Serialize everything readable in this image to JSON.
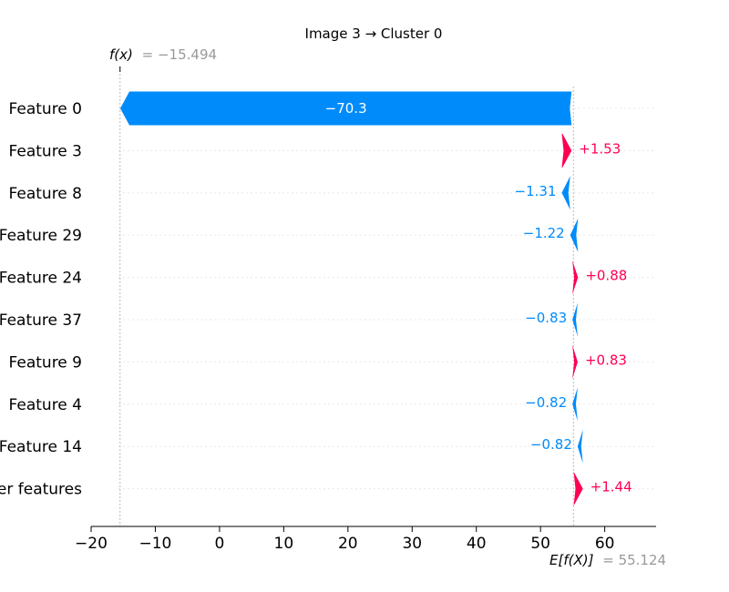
{
  "chart_data": {
    "type": "waterfall",
    "title": "Image 3 → Cluster 0",
    "fx_label": "f(x)",
    "fx_value_text": "= −15.494",
    "fx_value": -15.494,
    "ex_label": "E[f(X)]",
    "ex_value_text": "= 55.124",
    "ex_value": 55.124,
    "xlim": [
      -20,
      68
    ],
    "xticks": [
      -20,
      -10,
      0,
      10,
      20,
      30,
      40,
      50,
      60
    ],
    "xtick_labels": [
      "−20",
      "−10",
      "0",
      "10",
      "20",
      "30",
      "40",
      "50",
      "60"
    ],
    "rows": [
      {
        "feature": "Feature 0",
        "value": -70.3,
        "label": "−70.3",
        "start": 54.84,
        "end": -15.46
      },
      {
        "feature": "Feature 3",
        "value": 1.53,
        "label": "+1.53",
        "start": 53.31,
        "end": 54.84
      },
      {
        "feature": "Feature 8",
        "value": -1.31,
        "label": "−1.31",
        "start": 54.62,
        "end": 53.31
      },
      {
        "feature": "Feature 29",
        "value": -1.22,
        "label": "−1.22",
        "start": 55.84,
        "end": 54.62
      },
      {
        "feature": "Feature 24",
        "value": 0.88,
        "label": "+0.88",
        "start": 54.96,
        "end": 55.84
      },
      {
        "feature": "Feature 37",
        "value": -0.83,
        "label": "−0.83",
        "start": 55.79,
        "end": 54.96
      },
      {
        "feature": "Feature 9",
        "value": 0.83,
        "label": "+0.83",
        "start": 54.96,
        "end": 55.79
      },
      {
        "feature": "Feature 4",
        "value": -0.82,
        "label": "−0.82",
        "start": 55.78,
        "end": 54.96
      },
      {
        "feature": "Feature 14",
        "value": -0.82,
        "label": "−0.82",
        "start": 56.6,
        "end": 55.78
      },
      {
        "feature": "other features",
        "value": 1.44,
        "label": "+1.44",
        "start": 55.16,
        "end": 56.6
      }
    ],
    "colors": {
      "positive": "#ff0051",
      "negative": "#008bfb",
      "muted": "#999999",
      "text": "#000000"
    }
  }
}
